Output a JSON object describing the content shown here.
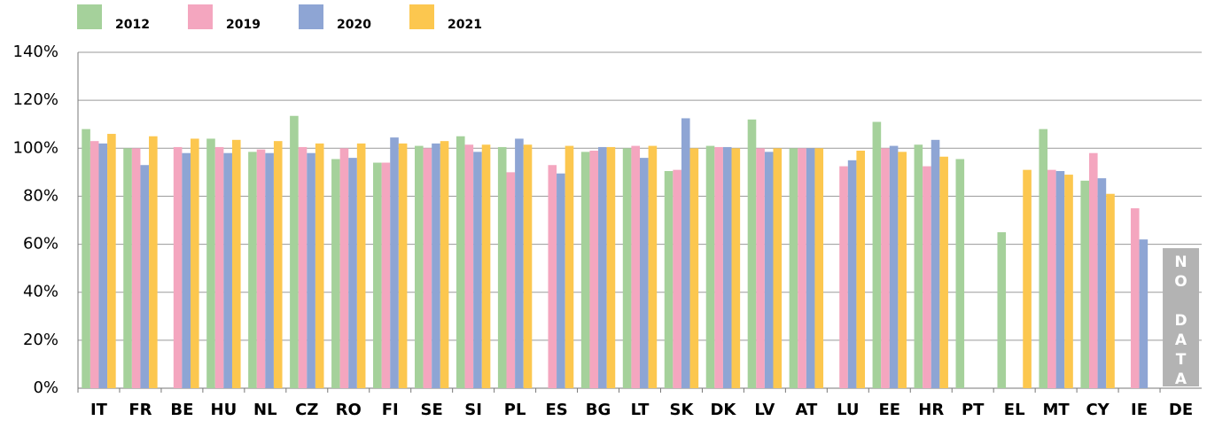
{
  "chart_data": {
    "type": "bar",
    "categories": [
      "IT",
      "FR",
      "BE",
      "HU",
      "NL",
      "CZ",
      "RO",
      "FI",
      "SE",
      "SI",
      "PL",
      "ES",
      "BG",
      "LT",
      "SK",
      "DK",
      "LV",
      "AT",
      "LU",
      "EE",
      "HR",
      "PT",
      "EL",
      "MT",
      "CY",
      "IE",
      "DE"
    ],
    "series": [
      {
        "name": "2012",
        "color": "#a5d19b",
        "values": [
          108,
          100,
          null,
          104,
          98.5,
          113.5,
          95.5,
          94,
          101,
          105,
          100.5,
          null,
          98.5,
          100,
          90.5,
          101,
          112,
          100,
          null,
          111,
          101.5,
          95.5,
          65,
          108,
          86.5,
          null,
          null
        ]
      },
      {
        "name": "2019",
        "color": "#f4a6bf",
        "values": [
          103,
          100,
          100.5,
          100.5,
          99.5,
          100.5,
          100,
          94,
          100,
          101.5,
          90,
          93,
          99,
          101,
          91,
          100.5,
          100,
          100,
          92.5,
          100,
          92.5,
          null,
          null,
          91,
          98,
          75,
          null
        ]
      },
      {
        "name": "2020",
        "color": "#8ea5d4",
        "values": [
          102,
          93,
          98,
          98,
          98,
          98,
          96,
          104.5,
          102,
          98.5,
          104,
          89.5,
          100.5,
          96,
          112.5,
          100.5,
          98.5,
          100,
          95,
          101,
          103.5,
          null,
          null,
          90.5,
          87.5,
          62,
          null
        ]
      },
      {
        "name": "2021",
        "color": "#fcc74f",
        "values": [
          106,
          105,
          104,
          103.5,
          103,
          102,
          102,
          102,
          103,
          101.5,
          101.5,
          101,
          100.5,
          101,
          100,
          100,
          100,
          100,
          99,
          98.5,
          96.5,
          null,
          91,
          89,
          81,
          null,
          null
        ]
      }
    ],
    "ylim": [
      0,
      140
    ],
    "yticks": [
      {
        "value": 0,
        "label": "0%"
      },
      {
        "value": 20,
        "label": "20%"
      },
      {
        "value": 40,
        "label": "40%"
      },
      {
        "value": 60,
        "label": "60%"
      },
      {
        "value": 80,
        "label": "80%"
      },
      {
        "value": 100,
        "label": "100%"
      },
      {
        "value": 120,
        "label": "120%"
      },
      {
        "value": 140,
        "label": "140%"
      }
    ],
    "grid": true,
    "annotation": "NO DATA"
  }
}
